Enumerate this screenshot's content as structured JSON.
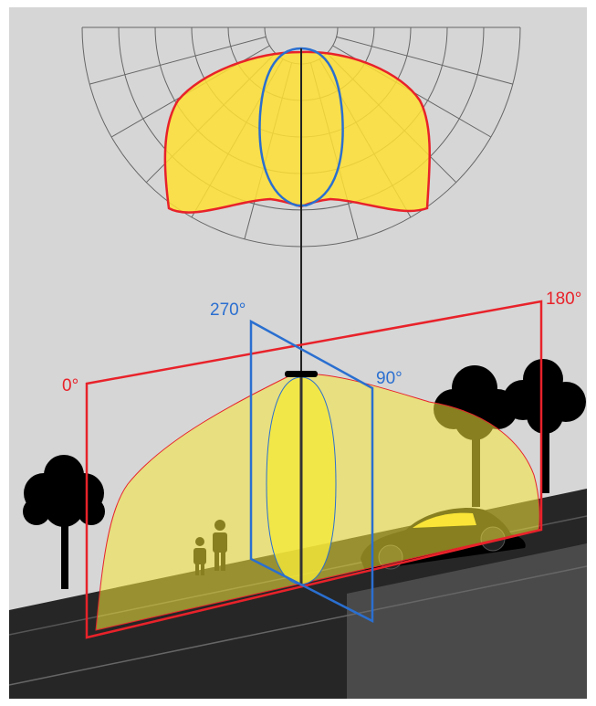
{
  "angle_labels": [
    "0°",
    "90°",
    "180°",
    "270°"
  ]
}
